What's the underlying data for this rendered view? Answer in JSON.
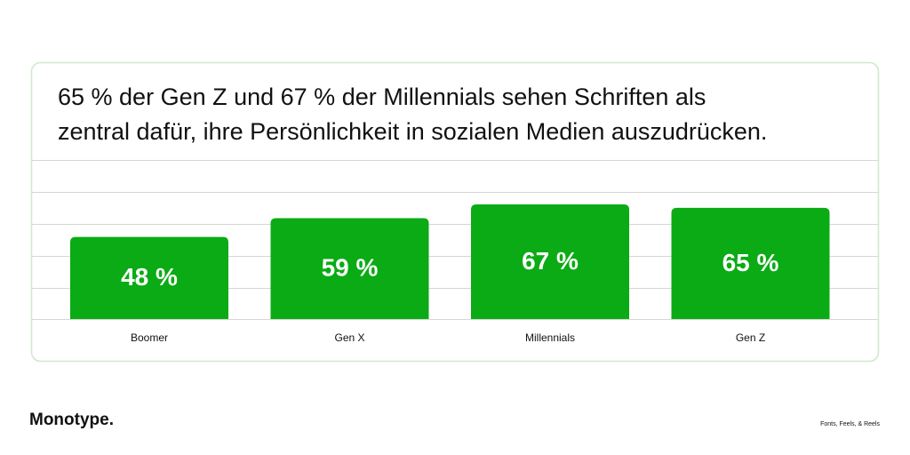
{
  "chart_data": {
    "type": "bar",
    "title_lines": [
      "65 % der Gen Z und 67 % der Millennials sehen Schriften als",
      "zentral dafür, ihre Persönlichkeit in sozialen Medien auszudrücken."
    ],
    "categories": [
      "Boomer",
      "Gen X",
      "Millennials",
      "Gen Z"
    ],
    "values": [
      48,
      59,
      67,
      65
    ],
    "value_labels": [
      "48 %",
      "59 %",
      "67 %",
      "65 %"
    ],
    "color": "#0aab14",
    "ylim": [
      0,
      93
    ]
  },
  "footer": {
    "brand": "Monotype.",
    "tagline": "Fonts, Feels, & Reels"
  }
}
